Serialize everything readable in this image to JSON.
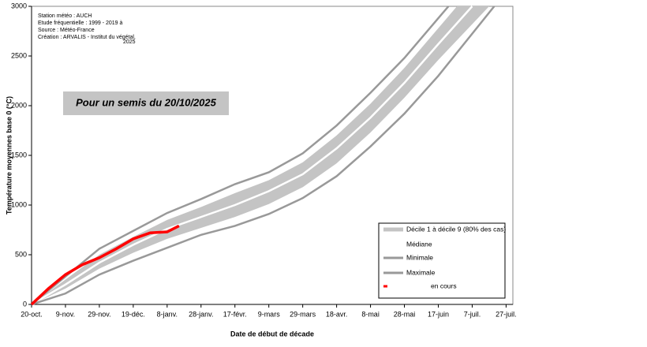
{
  "chart_data": {
    "type": "line",
    "header_lines": [
      "Station météo : AUCH",
      "Etude fréquentielle : 1999 - 2019 à",
      "Source : Météo-France",
      "Création : ARVALIS - Institut du végétal,",
      "2025"
    ],
    "annotation": "Pour un semis du 20/10/2025",
    "y_label": "Température moyennes base 0 (°C)",
    "x_label": "Date de début de décade",
    "xlim": [
      0,
      284
    ],
    "xticks": [
      {
        "value": 0,
        "label": "20-oct."
      },
      {
        "value": 20,
        "label": "9-nov."
      },
      {
        "value": 40,
        "label": "29-nov."
      },
      {
        "value": 60,
        "label": "19-déc."
      },
      {
        "value": 80,
        "label": "8-janv."
      },
      {
        "value": 100,
        "label": "28-janv."
      },
      {
        "value": 120,
        "label": "17-févr."
      },
      {
        "value": 140,
        "label": "9-mars"
      },
      {
        "value": 160,
        "label": "29-mars"
      },
      {
        "value": 180,
        "label": "18-avr."
      },
      {
        "value": 200,
        "label": "8-mai"
      },
      {
        "value": 220,
        "label": "28-mai"
      },
      {
        "value": 240,
        "label": "17-juin"
      },
      {
        "value": 260,
        "label": "7-juil."
      },
      {
        "value": 280,
        "label": "27-juil."
      }
    ],
    "ylim": [
      0,
      3000
    ],
    "yticks": [
      0,
      500,
      1000,
      1500,
      2000,
      2500,
      3000
    ],
    "band": {
      "name": "Décile 1 à décile 9 (80% des cas)",
      "color": "#c4c4c4",
      "x": [
        0,
        20,
        40,
        60,
        80,
        100,
        120,
        140,
        160,
        180,
        200,
        220,
        240,
        251
      ],
      "high": [
        0,
        250,
        500,
        680,
        850,
        980,
        1120,
        1250,
        1430,
        1700,
        2020,
        2380,
        2780,
        3000
      ],
      "x_low": [
        0,
        20,
        40,
        60,
        80,
        100,
        120,
        140,
        160,
        180,
        200,
        220,
        240,
        270
      ],
      "low": [
        0,
        160,
        360,
        520,
        660,
        770,
        880,
        1010,
        1180,
        1420,
        1730,
        2080,
        2460,
        3000
      ]
    },
    "series": [
      {
        "name": "Médiane",
        "color": "#ffffff",
        "x": [
          0,
          20,
          40,
          60,
          80,
          100,
          120,
          140,
          160,
          180,
          200,
          220,
          240,
          260
        ],
        "values": [
          0,
          200,
          420,
          600,
          760,
          880,
          1000,
          1140,
          1310,
          1570,
          1880,
          2230,
          2620,
          3000
        ]
      },
      {
        "name": "Minimale",
        "color": "#999999",
        "x": [
          0,
          20,
          40,
          60,
          80,
          100,
          120,
          140,
          160,
          180,
          200,
          220,
          240,
          273
        ],
        "values": [
          0,
          110,
          300,
          440,
          570,
          700,
          790,
          910,
          1070,
          1290,
          1590,
          1920,
          2300,
          3000
        ]
      },
      {
        "name": "Maximale",
        "color": "#999999",
        "x": [
          0,
          20,
          40,
          60,
          80,
          100,
          120,
          140,
          160,
          180,
          200,
          220,
          240,
          246
        ],
        "values": [
          0,
          280,
          560,
          740,
          920,
          1060,
          1210,
          1330,
          1520,
          1800,
          2130,
          2480,
          2880,
          3000
        ]
      },
      {
        "name": "en cours",
        "color": "#ff0000",
        "x": [
          0,
          10,
          20,
          30,
          40,
          50,
          60,
          70,
          80,
          87
        ],
        "values": [
          0,
          160,
          300,
          400,
          470,
          560,
          660,
          720,
          730,
          790
        ]
      }
    ]
  }
}
